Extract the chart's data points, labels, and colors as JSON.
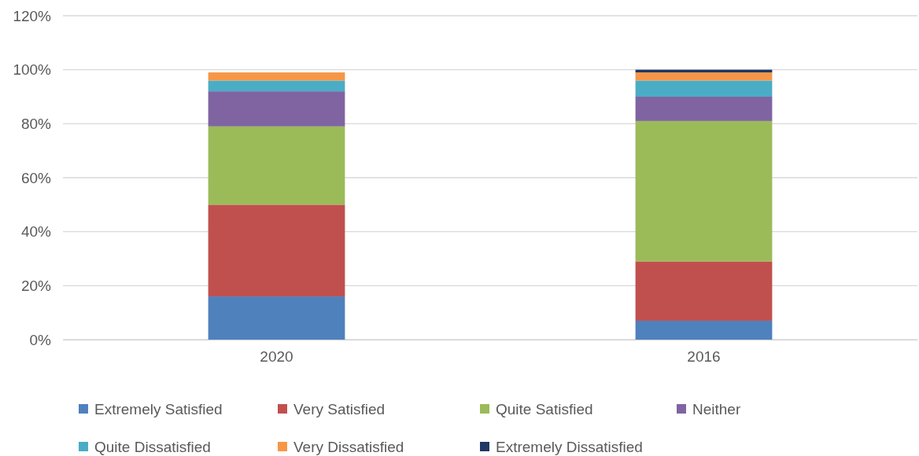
{
  "chart_data": {
    "type": "bar",
    "stacked": true,
    "categories": [
      "2020",
      "2016"
    ],
    "series": [
      {
        "name": "Extremely Satisfied",
        "color": "#4f81bd",
        "values": [
          16,
          7
        ]
      },
      {
        "name": "Very Satisfied",
        "color": "#c0504d",
        "values": [
          34,
          22
        ]
      },
      {
        "name": "Quite Satisfied",
        "color": "#9bbb59",
        "values": [
          29,
          52
        ]
      },
      {
        "name": "Neither",
        "color": "#8064a2",
        "values": [
          13,
          9
        ]
      },
      {
        "name": "Quite Dissatisfied",
        "color": "#4bacc6",
        "values": [
          4,
          6
        ]
      },
      {
        "name": "Very Dissatisfied",
        "color": "#f79646",
        "values": [
          3,
          3
        ]
      },
      {
        "name": "Extremely Dissatisfied",
        "color": "#1f3864",
        "values": [
          0,
          1
        ]
      }
    ],
    "ylim": [
      0,
      120
    ],
    "yticks": [
      {
        "value": 0,
        "label": "0%"
      },
      {
        "value": 20,
        "label": "20%"
      },
      {
        "value": 40,
        "label": "40%"
      },
      {
        "value": 60,
        "label": "60%"
      },
      {
        "value": 80,
        "label": "80%"
      },
      {
        "value": 100,
        "label": "100%"
      },
      {
        "value": 120,
        "label": "120%"
      }
    ],
    "grid": "y",
    "legend": "bottom"
  }
}
